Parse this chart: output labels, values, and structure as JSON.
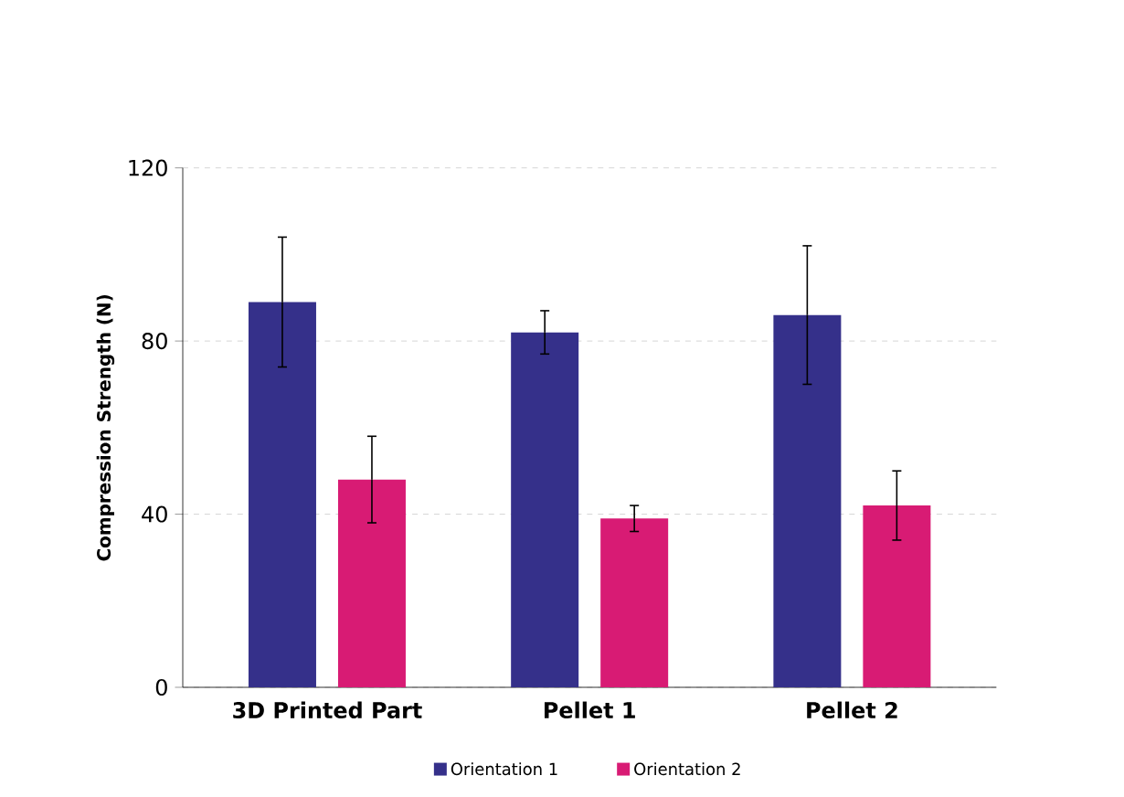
{
  "chart_data": {
    "type": "bar",
    "ylabel": "Compression Strength (N)",
    "categories": [
      "**3D Printed Part**",
      "**Pellet 1**",
      "**Pellet 2**"
    ],
    "series": [
      {
        "name": "Orientation 1",
        "color": "#35308a",
        "values": [
          89,
          82,
          86
        ],
        "errors": [
          15,
          5,
          16
        ]
      },
      {
        "name": "Orientation 2",
        "color": "#d81b74",
        "values": [
          48,
          39,
          42
        ],
        "errors": [
          10,
          3,
          8
        ]
      }
    ],
    "ylim": [
      0,
      120
    ],
    "yticks": [
      0,
      40,
      80,
      120
    ],
    "grid": "y",
    "legend": "bottom"
  }
}
